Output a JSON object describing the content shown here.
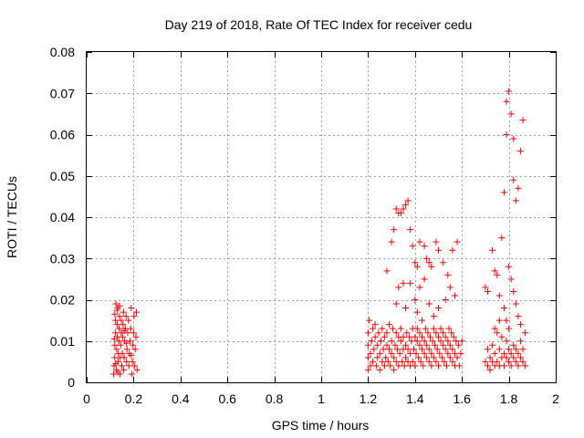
{
  "chart_data": {
    "type": "scatter",
    "title": "Day 219 of 2018, Rate Of TEC Index for receiver cedu",
    "xlabel": "GPS time / hours",
    "ylabel": "ROTI / TECUs",
    "xlim": [
      0,
      2
    ],
    "ylim": [
      0,
      0.08
    ],
    "xticks": [
      0,
      0.2,
      0.4,
      0.6,
      0.8,
      1,
      1.2,
      1.4,
      1.6,
      1.8,
      2
    ],
    "xtick_labels": [
      "0",
      "0.2",
      "0.4",
      "0.6",
      "0.8",
      "1",
      "1.2",
      "1.4",
      "1.6",
      "1.8",
      "2"
    ],
    "yticks": [
      0,
      0.01,
      0.02,
      0.03,
      0.04,
      0.05,
      0.06,
      0.07,
      0.08
    ],
    "ytick_labels": [
      "0",
      "0.01",
      "0.02",
      "0.03",
      "0.04",
      "0.05",
      "0.06",
      "0.07",
      "0.08"
    ],
    "grid": true,
    "marker": "+",
    "color": "#ff0000",
    "series": [
      {
        "name": "ROTI",
        "points": [
          [
            0.115,
            0.002
          ],
          [
            0.117,
            0.004
          ],
          [
            0.12,
            0.006
          ],
          [
            0.12,
            0.009
          ],
          [
            0.122,
            0.012
          ],
          [
            0.123,
            0.015
          ],
          [
            0.125,
            0.019
          ],
          [
            0.127,
            0.003
          ],
          [
            0.128,
            0.008
          ],
          [
            0.13,
            0.011
          ],
          [
            0.13,
            0.014
          ],
          [
            0.132,
            0.018
          ],
          [
            0.134,
            0.005
          ],
          [
            0.135,
            0.007
          ],
          [
            0.137,
            0.01
          ],
          [
            0.138,
            0.013
          ],
          [
            0.14,
            0.016
          ],
          [
            0.142,
            0.002
          ],
          [
            0.143,
            0.006
          ],
          [
            0.145,
            0.009
          ],
          [
            0.147,
            0.012
          ],
          [
            0.148,
            0.015
          ],
          [
            0.15,
            0.004
          ],
          [
            0.152,
            0.007
          ],
          [
            0.153,
            0.011
          ],
          [
            0.155,
            0.014
          ],
          [
            0.157,
            0.017
          ],
          [
            0.158,
            0.003
          ],
          [
            0.16,
            0.006
          ],
          [
            0.162,
            0.01
          ],
          [
            0.165,
            0.013
          ],
          [
            0.168,
            0.016
          ],
          [
            0.17,
            0.005
          ],
          [
            0.172,
            0.008
          ],
          [
            0.175,
            0.012
          ],
          [
            0.178,
            0.015
          ],
          [
            0.18,
            0.004
          ],
          [
            0.182,
            0.007
          ],
          [
            0.185,
            0.01
          ],
          [
            0.188,
            0.013
          ],
          [
            0.19,
            0.018
          ],
          [
            0.192,
            0.002
          ],
          [
            0.195,
            0.005
          ],
          [
            0.197,
            0.009
          ],
          [
            0.2,
            0.012
          ],
          [
            0.202,
            0.016
          ],
          [
            0.205,
            0.004
          ],
          [
            0.207,
            0.008
          ],
          [
            0.21,
            0.011
          ],
          [
            0.212,
            0.017
          ],
          [
            0.215,
            0.003
          ],
          [
            0.12,
            0.0165
          ],
          [
            0.13,
            0.0175
          ],
          [
            0.14,
            0.0185
          ],
          [
            0.118,
            0.0105
          ],
          [
            0.124,
            0.0045
          ],
          [
            0.133,
            0.0025
          ],
          [
            0.16,
            0.0125
          ],
          [
            0.17,
            0.0095
          ],
          [
            0.19,
            0.0065
          ],
          [
            1.2,
            0.003
          ],
          [
            1.2,
            0.006
          ],
          [
            1.2,
            0.009
          ],
          [
            1.2,
            0.012
          ],
          [
            1.205,
            0.015
          ],
          [
            1.21,
            0.004
          ],
          [
            1.21,
            0.007
          ],
          [
            1.215,
            0.01
          ],
          [
            1.22,
            0.013
          ],
          [
            1.22,
            0.005
          ],
          [
            1.225,
            0.008
          ],
          [
            1.23,
            0.011
          ],
          [
            1.23,
            0.014
          ],
          [
            1.235,
            0.004
          ],
          [
            1.24,
            0.006
          ],
          [
            1.24,
            0.009
          ],
          [
            1.245,
            0.012
          ],
          [
            1.25,
            0.003
          ],
          [
            1.25,
            0.007
          ],
          [
            1.255,
            0.01
          ],
          [
            1.26,
            0.013
          ],
          [
            1.26,
            0.005
          ],
          [
            1.265,
            0.008
          ],
          [
            1.27,
            0.011
          ],
          [
            1.27,
            0.004
          ],
          [
            1.275,
            0.006
          ],
          [
            1.28,
            0.009
          ],
          [
            1.28,
            0.012
          ],
          [
            1.285,
            0.005
          ],
          [
            1.29,
            0.008
          ],
          [
            1.29,
            0.014
          ],
          [
            1.295,
            0.004
          ],
          [
            1.3,
            0.007
          ],
          [
            1.3,
            0.01
          ],
          [
            1.305,
            0.013
          ],
          [
            1.31,
            0.003
          ],
          [
            1.31,
            0.006
          ],
          [
            1.315,
            0.009
          ],
          [
            1.32,
            0.012
          ],
          [
            1.32,
            0.005
          ],
          [
            1.325,
            0.008
          ],
          [
            1.33,
            0.011
          ],
          [
            1.33,
            0.004
          ],
          [
            1.335,
            0.007
          ],
          [
            1.34,
            0.01
          ],
          [
            1.34,
            0.013
          ],
          [
            1.345,
            0.005
          ],
          [
            1.35,
            0.008
          ],
          [
            1.35,
            0.011
          ],
          [
            1.355,
            0.004
          ],
          [
            1.36,
            0.006
          ],
          [
            1.36,
            0.009
          ],
          [
            1.365,
            0.012
          ],
          [
            1.37,
            0.005
          ],
          [
            1.37,
            0.008
          ],
          [
            1.375,
            0.011
          ],
          [
            1.38,
            0.004
          ],
          [
            1.38,
            0.007
          ],
          [
            1.385,
            0.01
          ],
          [
            1.39,
            0.013
          ],
          [
            1.39,
            0.005
          ],
          [
            1.395,
            0.008
          ],
          [
            1.4,
            0.011
          ],
          [
            1.4,
            0.004
          ],
          [
            1.405,
            0.007
          ],
          [
            1.41,
            0.01
          ],
          [
            1.41,
            0.013
          ],
          [
            1.415,
            0.006
          ],
          [
            1.42,
            0.009
          ],
          [
            1.42,
            0.012
          ],
          [
            1.425,
            0.005
          ],
          [
            1.43,
            0.008
          ],
          [
            1.43,
            0.011
          ],
          [
            1.435,
            0.004
          ],
          [
            1.44,
            0.007
          ],
          [
            1.44,
            0.01
          ],
          [
            1.445,
            0.013
          ],
          [
            1.45,
            0.006
          ],
          [
            1.45,
            0.009
          ],
          [
            1.455,
            0.012
          ],
          [
            1.46,
            0.005
          ],
          [
            1.46,
            0.008
          ],
          [
            1.465,
            0.011
          ],
          [
            1.47,
            0.004
          ],
          [
            1.47,
            0.007
          ],
          [
            1.475,
            0.01
          ],
          [
            1.48,
            0.013
          ],
          [
            1.48,
            0.006
          ],
          [
            1.485,
            0.009
          ],
          [
            1.49,
            0.012
          ],
          [
            1.49,
            0.005
          ],
          [
            1.495,
            0.008
          ],
          [
            1.5,
            0.011
          ],
          [
            1.5,
            0.004
          ],
          [
            1.505,
            0.007
          ],
          [
            1.51,
            0.01
          ],
          [
            1.51,
            0.013
          ],
          [
            1.515,
            0.006
          ],
          [
            1.52,
            0.009
          ],
          [
            1.52,
            0.012
          ],
          [
            1.525,
            0.005
          ],
          [
            1.53,
            0.008
          ],
          [
            1.53,
            0.011
          ],
          [
            1.535,
            0.004
          ],
          [
            1.54,
            0.007
          ],
          [
            1.54,
            0.01
          ],
          [
            1.545,
            0.013
          ],
          [
            1.55,
            0.006
          ],
          [
            1.55,
            0.009
          ],
          [
            1.555,
            0.012
          ],
          [
            1.56,
            0.005
          ],
          [
            1.56,
            0.008
          ],
          [
            1.565,
            0.011
          ],
          [
            1.57,
            0.004
          ],
          [
            1.57,
            0.007
          ],
          [
            1.575,
            0.01
          ],
          [
            1.58,
            0.006
          ],
          [
            1.585,
            0.009
          ],
          [
            1.59,
            0.004
          ],
          [
            1.595,
            0.007
          ],
          [
            1.6,
            0.01
          ],
          [
            1.28,
            0.027
          ],
          [
            1.3,
            0.034
          ],
          [
            1.31,
            0.037
          ],
          [
            1.32,
            0.042
          ],
          [
            1.33,
            0.041
          ],
          [
            1.34,
            0.041
          ],
          [
            1.35,
            0.042
          ],
          [
            1.36,
            0.043
          ],
          [
            1.37,
            0.044
          ],
          [
            1.38,
            0.037
          ],
          [
            1.39,
            0.033
          ],
          [
            1.4,
            0.029
          ],
          [
            1.41,
            0.028
          ],
          [
            1.42,
            0.034
          ],
          [
            1.44,
            0.033
          ],
          [
            1.45,
            0.03
          ],
          [
            1.46,
            0.029
          ],
          [
            1.47,
            0.028
          ],
          [
            1.49,
            0.034
          ],
          [
            1.5,
            0.032
          ],
          [
            1.52,
            0.029
          ],
          [
            1.54,
            0.026
          ],
          [
            1.56,
            0.032
          ],
          [
            1.58,
            0.034
          ],
          [
            1.33,
            0.023
          ],
          [
            1.35,
            0.024
          ],
          [
            1.38,
            0.024
          ],
          [
            1.4,
            0.02
          ],
          [
            1.42,
            0.023
          ],
          [
            1.44,
            0.025
          ],
          [
            1.46,
            0.019
          ],
          [
            1.48,
            0.016
          ],
          [
            1.5,
            0.018
          ],
          [
            1.53,
            0.02
          ],
          [
            1.55,
            0.023
          ],
          [
            1.57,
            0.021
          ],
          [
            1.32,
            0.019
          ],
          [
            1.36,
            0.018
          ],
          [
            1.41,
            0.017
          ],
          [
            1.43,
            0.015
          ],
          [
            1.7,
            0.023
          ],
          [
            1.7,
            0.005
          ],
          [
            1.71,
            0.004
          ],
          [
            1.71,
            0.008
          ],
          [
            1.72,
            0.003
          ],
          [
            1.72,
            0.006
          ],
          [
            1.73,
            0.005
          ],
          [
            1.73,
            0.009
          ],
          [
            1.74,
            0.004
          ],
          [
            1.74,
            0.007
          ],
          [
            1.75,
            0.005
          ],
          [
            1.75,
            0.012
          ],
          [
            1.76,
            0.004
          ],
          [
            1.76,
            0.008
          ],
          [
            1.77,
            0.006
          ],
          [
            1.77,
            0.011
          ],
          [
            1.78,
            0.004
          ],
          [
            1.78,
            0.007
          ],
          [
            1.79,
            0.006
          ],
          [
            1.79,
            0.01
          ],
          [
            1.8,
            0.005
          ],
          [
            1.8,
            0.008
          ],
          [
            1.81,
            0.004
          ],
          [
            1.81,
            0.007
          ],
          [
            1.82,
            0.006
          ],
          [
            1.82,
            0.009
          ],
          [
            1.83,
            0.005
          ],
          [
            1.83,
            0.008
          ],
          [
            1.84,
            0.004
          ],
          [
            1.84,
            0.007
          ],
          [
            1.85,
            0.006
          ],
          [
            1.85,
            0.01
          ],
          [
            1.86,
            0.005
          ],
          [
            1.86,
            0.008
          ],
          [
            1.87,
            0.004
          ],
          [
            1.87,
            0.012
          ],
          [
            1.71,
            0.022
          ],
          [
            1.73,
            0.032
          ],
          [
            1.74,
            0.027
          ],
          [
            1.75,
            0.026
          ],
          [
            1.76,
            0.021
          ],
          [
            1.77,
            0.035
          ],
          [
            1.78,
            0.046
          ],
          [
            1.79,
            0.06
          ],
          [
            1.79,
            0.068
          ],
          [
            1.8,
            0.0705
          ],
          [
            1.81,
            0.065
          ],
          [
            1.82,
            0.059
          ],
          [
            1.82,
            0.049
          ],
          [
            1.83,
            0.044
          ],
          [
            1.84,
            0.047
          ],
          [
            1.85,
            0.056
          ],
          [
            1.86,
            0.0635
          ],
          [
            1.8,
            0.028
          ],
          [
            1.81,
            0.025
          ],
          [
            1.82,
            0.022
          ],
          [
            1.83,
            0.019
          ],
          [
            1.84,
            0.016
          ],
          [
            1.85,
            0.014
          ],
          [
            1.78,
            0.018
          ],
          [
            1.79,
            0.015
          ],
          [
            1.8,
            0.013
          ],
          [
            1.76,
            0.015
          ],
          [
            1.74,
            0.013
          ]
        ]
      }
    ]
  }
}
